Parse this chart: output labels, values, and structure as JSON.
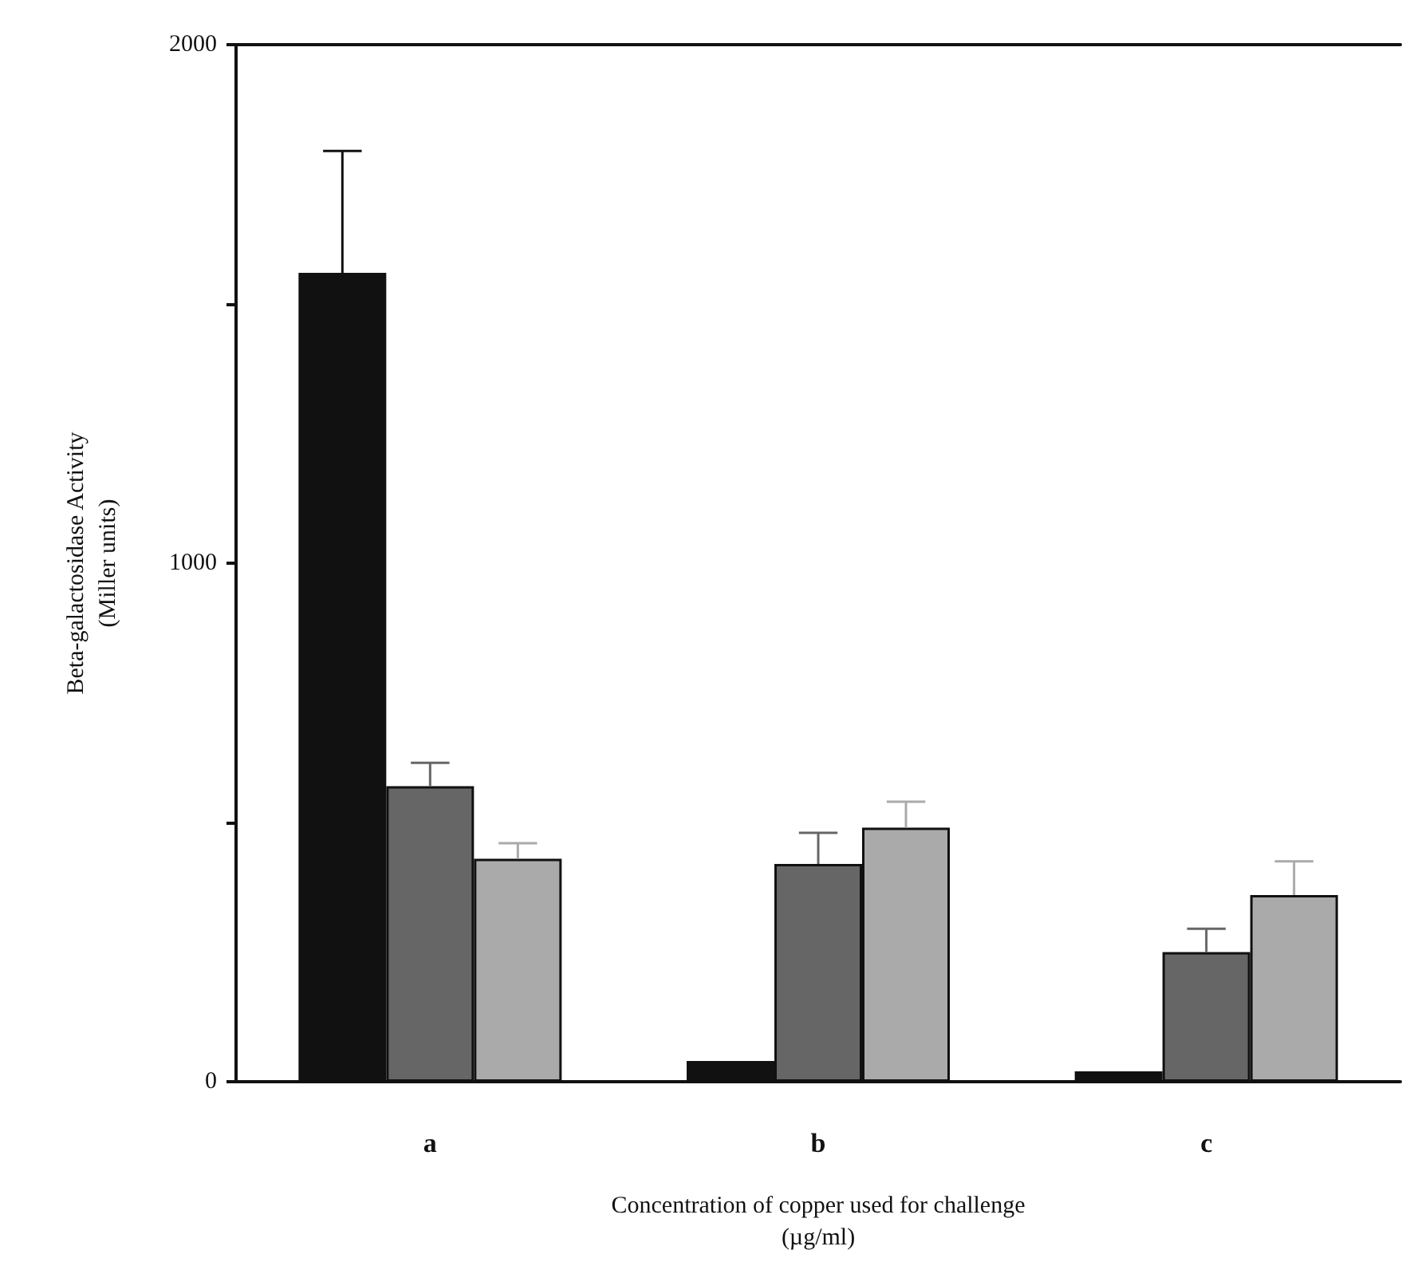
{
  "chart_data": {
    "type": "bar",
    "xlabel": "Concentration of copper used for challenge\n(µg/ml)",
    "ylabel": "Beta-galactosidase Activity\n(Miller units)",
    "categories": [
      "a",
      "b",
      "c"
    ],
    "series": [
      {
        "color": "#111111",
        "values": [
          1560,
          40,
          20
        ],
        "errors": [
          235,
          null,
          null
        ]
      },
      {
        "color": "#666666",
        "values": [
          570,
          420,
          250
        ],
        "errors": [
          45,
          60,
          45
        ]
      },
      {
        "color": "#aaaaaa",
        "values": [
          430,
          490,
          360
        ],
        "errors": [
          30,
          50,
          65
        ]
      }
    ],
    "ylim": [
      0,
      2000
    ],
    "yticks": [
      0,
      {
        "value": 500,
        "label": null
      },
      1000,
      {
        "value": 1500,
        "label": null
      },
      2000
    ],
    "grid": false
  }
}
